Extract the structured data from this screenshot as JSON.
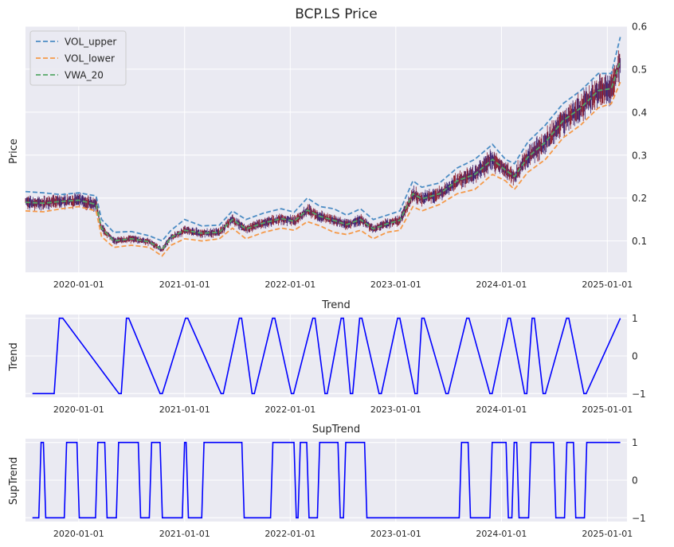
{
  "chart_data": [
    {
      "type": "line",
      "title": "BCP.LS Price",
      "ylabel": "Price",
      "xlabel": "",
      "xlim": [
        "2019-07-01",
        "2025-03-10"
      ],
      "ylim": [
        0.027,
        0.6
      ],
      "y_axis_side": "right",
      "yticks": [
        0.1,
        0.2,
        0.3,
        0.4,
        0.5,
        0.6
      ],
      "yticklabels": [
        "0.1",
        "0.2",
        "0.3",
        "0.4",
        "0.5",
        "0.6"
      ],
      "xticks": [
        "2020-01-01",
        "2021-01-01",
        "2022-01-01",
        "2023-01-01",
        "2024-01-01",
        "2025-01-01"
      ],
      "grid": true,
      "legend_position": "top-left",
      "legend": [
        "VOL_upper",
        "VOL_lower",
        "VWA_20"
      ],
      "series": [
        {
          "name": "VOL_upper",
          "color": "#4c8cc4",
          "style": "dashed",
          "x": [
            "2019-07-01",
            "2019-09-01",
            "2019-11-01",
            "2020-01-01",
            "2020-03-01",
            "2020-03-20",
            "2020-05-01",
            "2020-07-01",
            "2020-09-01",
            "2020-10-15",
            "2020-11-15",
            "2021-01-01",
            "2021-03-01",
            "2021-05-01",
            "2021-06-15",
            "2021-08-01",
            "2021-10-01",
            "2021-12-01",
            "2022-01-15",
            "2022-03-01",
            "2022-04-15",
            "2022-06-01",
            "2022-07-15",
            "2022-09-01",
            "2022-10-15",
            "2022-12-01",
            "2023-01-15",
            "2023-03-01",
            "2023-04-01",
            "2023-06-01",
            "2023-08-01",
            "2023-10-01",
            "2023-12-01",
            "2024-01-15",
            "2024-02-15",
            "2024-04-01",
            "2024-06-01",
            "2024-08-01",
            "2024-10-01",
            "2024-12-01",
            "2025-01-15",
            "2025-02-15"
          ],
          "values": [
            0.215,
            0.212,
            0.208,
            0.212,
            0.205,
            0.15,
            0.12,
            0.122,
            0.112,
            0.1,
            0.125,
            0.15,
            0.135,
            0.137,
            0.17,
            0.15,
            0.165,
            0.175,
            0.167,
            0.2,
            0.18,
            0.175,
            0.16,
            0.175,
            0.15,
            0.16,
            0.17,
            0.24,
            0.225,
            0.235,
            0.27,
            0.29,
            0.325,
            0.29,
            0.28,
            0.33,
            0.37,
            0.42,
            0.45,
            0.49,
            0.49,
            0.575
          ]
        },
        {
          "name": "VOL_lower",
          "color": "#f59a4a",
          "style": "dashed",
          "x": [
            "2019-07-01",
            "2019-09-01",
            "2019-11-01",
            "2020-01-01",
            "2020-03-01",
            "2020-03-20",
            "2020-05-01",
            "2020-07-01",
            "2020-09-01",
            "2020-10-15",
            "2020-11-15",
            "2021-01-01",
            "2021-03-01",
            "2021-05-01",
            "2021-06-15",
            "2021-08-01",
            "2021-10-01",
            "2021-12-01",
            "2022-01-15",
            "2022-03-01",
            "2022-04-15",
            "2022-06-01",
            "2022-07-15",
            "2022-09-01",
            "2022-10-15",
            "2022-12-01",
            "2023-01-15",
            "2023-03-01",
            "2023-04-01",
            "2023-06-01",
            "2023-08-01",
            "2023-10-01",
            "2023-12-01",
            "2024-01-15",
            "2024-02-15",
            "2024-04-01",
            "2024-06-01",
            "2024-08-01",
            "2024-10-01",
            "2024-12-01",
            "2025-01-15",
            "2025-02-15"
          ],
          "values": [
            0.17,
            0.168,
            0.175,
            0.18,
            0.17,
            0.11,
            0.085,
            0.09,
            0.085,
            0.065,
            0.09,
            0.105,
            0.1,
            0.105,
            0.13,
            0.105,
            0.12,
            0.13,
            0.125,
            0.145,
            0.135,
            0.12,
            0.115,
            0.125,
            0.105,
            0.12,
            0.125,
            0.18,
            0.17,
            0.185,
            0.21,
            0.22,
            0.255,
            0.24,
            0.22,
            0.26,
            0.29,
            0.34,
            0.37,
            0.41,
            0.42,
            0.47
          ]
        },
        {
          "name": "VWA_20",
          "color": "#55a868",
          "style": "dashed",
          "x": [
            "2019-07-01",
            "2019-09-01",
            "2019-11-01",
            "2020-01-01",
            "2020-03-01",
            "2020-03-20",
            "2020-05-01",
            "2020-07-01",
            "2020-09-01",
            "2020-10-15",
            "2020-11-15",
            "2021-01-01",
            "2021-03-01",
            "2021-05-01",
            "2021-06-15",
            "2021-08-01",
            "2021-10-01",
            "2021-12-01",
            "2022-01-15",
            "2022-03-01",
            "2022-04-15",
            "2022-06-01",
            "2022-07-15",
            "2022-09-01",
            "2022-10-15",
            "2022-12-01",
            "2023-01-15",
            "2023-03-01",
            "2023-04-01",
            "2023-06-01",
            "2023-08-01",
            "2023-10-01",
            "2023-12-01",
            "2024-01-15",
            "2024-02-15",
            "2024-04-01",
            "2024-06-01",
            "2024-08-01",
            "2024-10-01",
            "2024-12-01",
            "2025-01-15",
            "2025-02-15"
          ],
          "values": [
            0.19,
            0.188,
            0.192,
            0.195,
            0.185,
            0.13,
            0.1,
            0.105,
            0.098,
            0.08,
            0.108,
            0.125,
            0.118,
            0.12,
            0.15,
            0.128,
            0.142,
            0.152,
            0.146,
            0.172,
            0.157,
            0.148,
            0.138,
            0.15,
            0.128,
            0.14,
            0.148,
            0.21,
            0.198,
            0.21,
            0.24,
            0.255,
            0.29,
            0.265,
            0.25,
            0.295,
            0.33,
            0.38,
            0.41,
            0.45,
            0.455,
            0.52
          ]
        }
      ]
    },
    {
      "type": "line",
      "title": "Trend",
      "ylabel": "Trend",
      "xlabel": "",
      "xlim": [
        "2019-07-01",
        "2025-03-10"
      ],
      "ylim": [
        -1.1,
        1.1
      ],
      "y_axis_side": "right",
      "yticks": [
        -1,
        0,
        1
      ],
      "yticklabels": [
        "−1",
        "0",
        "1"
      ],
      "xticks": [
        "2020-01-01",
        "2021-01-01",
        "2022-01-01",
        "2023-01-01",
        "2024-01-01",
        "2025-01-01"
      ],
      "grid": true,
      "series": [
        {
          "color": "#0000ff",
          "x": [
            "2019-07-25",
            "2019-10-08",
            "2019-10-26",
            "2019-11-07",
            "2020-05-19",
            "2020-05-27",
            "2020-06-14",
            "2020-06-22",
            "2020-10-08",
            "2020-10-16",
            "2021-01-04",
            "2021-01-12",
            "2021-05-07",
            "2021-05-15",
            "2021-07-09",
            "2021-07-17",
            "2021-08-22",
            "2021-08-30",
            "2021-11-01",
            "2021-11-09",
            "2022-01-05",
            "2022-01-13",
            "2022-03-20",
            "2022-03-28",
            "2022-05-01",
            "2022-05-09",
            "2022-06-26",
            "2022-07-04",
            "2022-07-28",
            "2022-08-05",
            "2022-08-29",
            "2022-09-06",
            "2022-11-04",
            "2022-11-12",
            "2023-01-07",
            "2023-01-15",
            "2023-03-08",
            "2023-03-16",
            "2023-04-01",
            "2023-04-09",
            "2023-06-23",
            "2023-07-01",
            "2023-09-03",
            "2023-09-11",
            "2023-11-22",
            "2023-11-30",
            "2024-01-24",
            "2024-02-01",
            "2024-03-21",
            "2024-03-29",
            "2024-04-16",
            "2024-04-24",
            "2024-05-24",
            "2024-06-01",
            "2024-08-13",
            "2024-08-21",
            "2024-10-12",
            "2024-10-20",
            "2025-02-15"
          ],
          "values": [
            -1,
            -1,
            1,
            1,
            -1,
            -1,
            1,
            1,
            -1,
            -1,
            1,
            1,
            -1,
            -1,
            1,
            1,
            -1,
            -1,
            1,
            1,
            -1,
            -1,
            1,
            1,
            -1,
            -1,
            1,
            1,
            -1,
            -1,
            1,
            1,
            -1,
            -1,
            1,
            1,
            -1,
            -1,
            1,
            1,
            -1,
            -1,
            1,
            1,
            -1,
            -1,
            1,
            1,
            -1,
            -1,
            1,
            1,
            -1,
            -1,
            1,
            1,
            -1,
            -1,
            1
          ]
        }
      ]
    },
    {
      "type": "line",
      "title": "SupTrend",
      "ylabel": "SupTrend",
      "xlabel": "",
      "xlim": [
        "2019-07-01",
        "2025-03-10"
      ],
      "ylim": [
        -1.1,
        1.1
      ],
      "y_axis_side": "right",
      "yticks": [
        -1,
        0,
        1
      ],
      "yticklabels": [
        "−1",
        "0",
        "1"
      ],
      "xticks": [
        "2020-01-01",
        "2021-01-01",
        "2022-01-01",
        "2023-01-01",
        "2024-01-01",
        "2025-01-01"
      ],
      "grid": true,
      "series": [
        {
          "color": "#0000ff",
          "x": [
            "2019-07-25",
            "2019-08-16",
            "2019-08-24",
            "2019-09-01",
            "2019-09-09",
            "2019-11-12",
            "2019-11-20",
            "2019-12-26",
            "2020-01-03",
            "2020-02-28",
            "2020-03-07",
            "2020-03-31",
            "2020-04-08",
            "2020-05-10",
            "2020-05-18",
            "2020-07-25",
            "2020-08-02",
            "2020-09-01",
            "2020-09-09",
            "2020-10-08",
            "2020-10-16",
            "2020-12-24",
            "2021-01-01",
            "2021-01-06",
            "2021-01-14",
            "2021-03-01",
            "2021-03-09",
            "2021-07-18",
            "2021-07-26",
            "2021-10-25",
            "2021-11-02",
            "2022-01-14",
            "2022-01-22",
            "2022-01-28",
            "2022-02-05",
            "2022-02-27",
            "2022-03-07",
            "2022-04-05",
            "2022-04-13",
            "2022-06-15",
            "2022-06-23",
            "2022-07-04",
            "2022-07-12",
            "2022-09-15",
            "2022-09-23",
            "2023-08-08",
            "2023-08-16",
            "2023-09-08",
            "2023-09-16",
            "2023-11-22",
            "2023-11-30",
            "2024-01-17",
            "2024-01-25",
            "2024-02-06",
            "2024-02-14",
            "2024-02-23",
            "2024-03-02",
            "2024-04-04",
            "2024-04-12",
            "2024-06-29",
            "2024-07-07",
            "2024-08-06",
            "2024-08-14",
            "2024-09-06",
            "2024-09-14",
            "2024-10-14",
            "2024-10-22",
            "2025-02-15"
          ],
          "values": [
            -1,
            -1,
            1,
            1,
            -1,
            -1,
            1,
            1,
            -1,
            -1,
            1,
            1,
            -1,
            -1,
            1,
            1,
            -1,
            -1,
            1,
            1,
            -1,
            -1,
            1,
            1,
            -1,
            -1,
            1,
            1,
            -1,
            -1,
            1,
            1,
            -1,
            -1,
            1,
            1,
            -1,
            -1,
            1,
            1,
            -1,
            -1,
            1,
            1,
            -1,
            -1,
            1,
            1,
            -1,
            -1,
            1,
            1,
            -1,
            -1,
            1,
            1,
            -1,
            -1,
            1,
            1,
            -1,
            -1,
            1,
            1,
            -1,
            -1,
            1,
            1
          ]
        }
      ]
    }
  ]
}
